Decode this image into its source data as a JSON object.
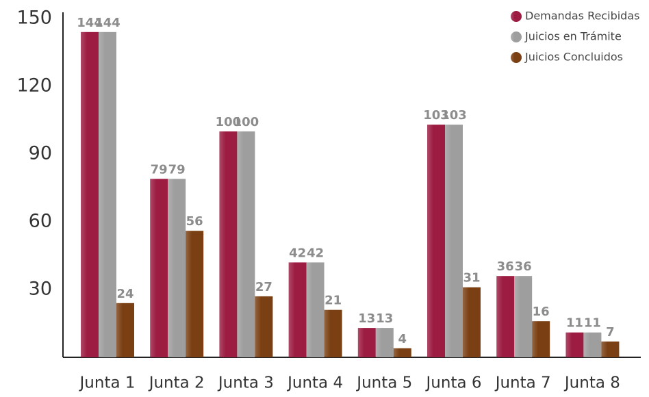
{
  "chart_data": {
    "type": "bar",
    "categories": [
      "Junta 1",
      "Junta 2",
      "Junta 3",
      "Junta 4",
      "Junta 5",
      "Junta 6",
      "Junta 7",
      "Junta 8"
    ],
    "series": [
      {
        "name": "Demandas Recibidas",
        "color": "#9c1c42",
        "values": [
          144,
          79,
          100,
          42,
          13,
          103,
          36,
          11
        ]
      },
      {
        "name": "Juicios en Trámite",
        "color": "#9e9e9e",
        "values": [
          144,
          79,
          100,
          42,
          13,
          103,
          36,
          11
        ]
      },
      {
        "name": "Juicios Concluidos",
        "color": "#7a3f12",
        "values": [
          24,
          56,
          27,
          21,
          4,
          31,
          16,
          7
        ]
      }
    ],
    "ylim": [
      0,
      150
    ],
    "yticks": [
      30,
      60,
      90,
      120,
      150
    ],
    "legend": "top-right"
  }
}
